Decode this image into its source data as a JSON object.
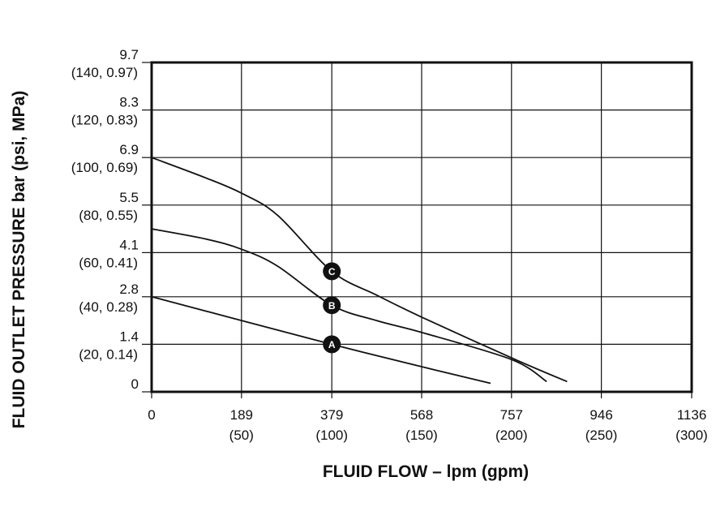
{
  "chart_data": {
    "type": "line",
    "xlabel": "FLUID FLOW – lpm (gpm)",
    "ylabel": "FLUID OUTLET PRESSURE bar (psi, MPa)",
    "xlim": [
      0,
      1136
    ],
    "ylim": [
      0,
      9.7
    ],
    "grid": true,
    "x_ticks": [
      {
        "value": 0,
        "label": "0",
        "sub": ""
      },
      {
        "value": 189,
        "label": "189",
        "sub": "(50)"
      },
      {
        "value": 379,
        "label": "379",
        "sub": "(100)"
      },
      {
        "value": 568,
        "label": "568",
        "sub": "(150)"
      },
      {
        "value": 757,
        "label": "757",
        "sub": "(200)"
      },
      {
        "value": 946,
        "label": "946",
        "sub": "(250)"
      },
      {
        "value": 1136,
        "label": "1136",
        "sub": "(300)"
      }
    ],
    "y_ticks": [
      {
        "value": 0,
        "label": "0",
        "sub": ""
      },
      {
        "value": 1.4,
        "label": "1.4",
        "sub": "(20, 0.14)"
      },
      {
        "value": 2.8,
        "label": "2.8",
        "sub": "(40, 0.28)"
      },
      {
        "value": 4.1,
        "label": "4.1",
        "sub": "(60, 0.41)"
      },
      {
        "value": 5.5,
        "label": "5.5",
        "sub": "(80, 0.55)"
      },
      {
        "value": 6.9,
        "label": "6.9",
        "sub": "(100, 0.69)"
      },
      {
        "value": 8.3,
        "label": "8.3",
        "sub": "(120, 0.83)"
      },
      {
        "value": 9.7,
        "label": "9.7",
        "sub": "(140, 0.97)"
      }
    ],
    "series": [
      {
        "label": "A",
        "marker_x": 379,
        "x": [
          0,
          189,
          379,
          568,
          713
        ],
        "y": [
          2.8,
          2.1,
          1.4,
          0.74,
          0.25
        ]
      },
      {
        "label": "B",
        "marker_x": 379,
        "x": [
          0,
          114,
          189,
          265,
          379,
          473,
          568,
          757,
          831
        ],
        "y": [
          4.8,
          4.5,
          4.2,
          3.7,
          2.55,
          2.1,
          1.75,
          0.95,
          0.3
        ]
      },
      {
        "label": "C",
        "marker_x": 379,
        "x": [
          0,
          114,
          189,
          265,
          379,
          473,
          568,
          757,
          874
        ],
        "y": [
          6.9,
          6.3,
          5.85,
          5.2,
          3.55,
          2.85,
          2.2,
          1.0,
          0.3
        ]
      }
    ]
  }
}
